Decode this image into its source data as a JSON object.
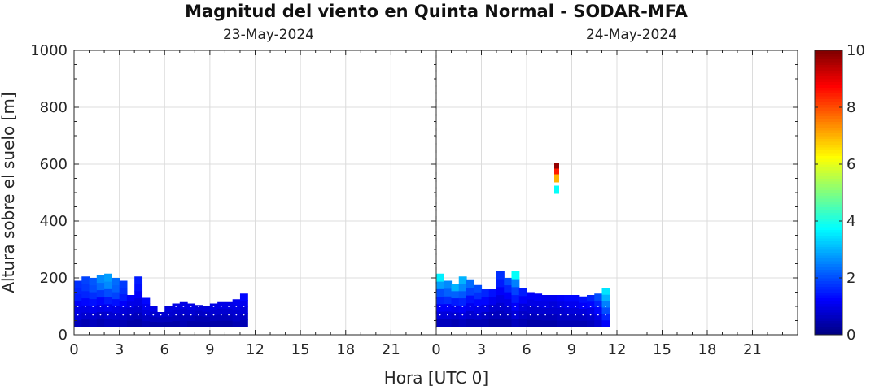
{
  "chart_data": {
    "type": "heatmap",
    "title": "Magnitud del viento en Quinta Normal - SODAR-MFA",
    "xlabel": "Hora [UTC 0]",
    "ylabel": "Altura sobre el suelo [m]",
    "ylim": [
      0,
      1000
    ],
    "yticks": [
      "0",
      "200",
      "400",
      "600",
      "800",
      "1000"
    ],
    "grid": true,
    "days": [
      {
        "date": "23-May-2024",
        "xlim": [
          0,
          24
        ],
        "xticks": [
          "0",
          "3",
          "6",
          "9",
          "12",
          "15",
          "18",
          "21"
        ],
        "columns": [
          {
            "x": 0.0,
            "top": 190,
            "values": [
              0.6,
              0.9,
              1.0,
              1.2,
              1.5,
              1.6,
              1.7
            ]
          },
          {
            "x": 0.5,
            "top": 205,
            "values": [
              0.5,
              0.8,
              1.0,
              1.3,
              1.6,
              1.8,
              1.9
            ]
          },
          {
            "x": 1.0,
            "top": 200,
            "values": [
              0.6,
              0.8,
              1.1,
              1.4,
              1.7,
              2.0,
              2.1
            ]
          },
          {
            "x": 1.5,
            "top": 210,
            "values": [
              0.5,
              0.7,
              1.0,
              1.3,
              1.8,
              2.3,
              2.6
            ]
          },
          {
            "x": 2.0,
            "top": 215,
            "values": [
              0.6,
              0.8,
              1.1,
              1.5,
              2.0,
              2.6,
              2.8
            ]
          },
          {
            "x": 2.5,
            "top": 200,
            "values": [
              0.6,
              0.8,
              1.0,
              1.4,
              1.9,
              2.2,
              2.3
            ]
          },
          {
            "x": 3.0,
            "top": 190,
            "values": [
              0.5,
              0.7,
              0.9,
              1.2,
              1.5,
              1.7,
              1.8
            ]
          },
          {
            "x": 3.5,
            "top": 140,
            "values": [
              0.4,
              0.6,
              0.8,
              1.0,
              1.2
            ]
          },
          {
            "x": 4.0,
            "top": 205,
            "values": [
              0.4,
              0.6,
              0.8,
              1.0,
              1.2,
              1.4,
              1.5
            ]
          },
          {
            "x": 4.5,
            "top": 130,
            "values": [
              0.5,
              0.7,
              0.9,
              1.1,
              1.3
            ]
          },
          {
            "x": 5.0,
            "top": 100,
            "values": [
              0.4,
              0.6,
              0.8,
              1.0
            ]
          },
          {
            "x": 5.5,
            "top": 80,
            "values": [
              0.4,
              0.6,
              0.8
            ]
          },
          {
            "x": 6.0,
            "top": 100,
            "values": [
              0.4,
              0.6,
              0.8,
              0.9
            ]
          },
          {
            "x": 6.5,
            "top": 110,
            "values": [
              0.4,
              0.6,
              0.8,
              1.0
            ]
          },
          {
            "x": 7.0,
            "top": 115,
            "values": [
              0.5,
              0.6,
              0.8,
              1.0
            ]
          },
          {
            "x": 7.5,
            "top": 110,
            "values": [
              0.4,
              0.6,
              0.8,
              1.0
            ]
          },
          {
            "x": 8.0,
            "top": 105,
            "values": [
              0.4,
              0.5,
              0.7,
              0.9
            ]
          },
          {
            "x": 8.5,
            "top": 100,
            "values": [
              0.4,
              0.5,
              0.7,
              0.9
            ]
          },
          {
            "x": 9.0,
            "top": 110,
            "values": [
              0.4,
              0.6,
              0.8,
              1.0
            ]
          },
          {
            "x": 9.5,
            "top": 115,
            "values": [
              0.4,
              0.6,
              0.8,
              1.0
            ]
          },
          {
            "x": 10.0,
            "top": 115,
            "values": [
              0.4,
              0.6,
              0.8,
              1.0
            ]
          },
          {
            "x": 10.5,
            "top": 125,
            "values": [
              0.5,
              0.7,
              0.8,
              1.0,
              1.1
            ]
          },
          {
            "x": 11.0,
            "top": 145,
            "values": [
              0.5,
              0.7,
              0.9,
              1.1,
              1.3
            ]
          }
        ]
      },
      {
        "date": "24-May-2024",
        "xlim": [
          0,
          24
        ],
        "xticks": [
          "0",
          "3",
          "6",
          "9",
          "12",
          "15",
          "18",
          "21"
        ],
        "columns": [
          {
            "x": 0.0,
            "top": 215,
            "values": [
              0.6,
              0.9,
              1.2,
              1.6,
              2.0,
              2.8,
              3.6
            ]
          },
          {
            "x": 0.5,
            "top": 190,
            "values": [
              0.6,
              0.9,
              1.2,
              1.7,
              2.2,
              2.6
            ]
          },
          {
            "x": 1.0,
            "top": 180,
            "values": [
              0.5,
              0.8,
              1.1,
              1.5,
              2.2,
              3.0
            ]
          },
          {
            "x": 1.5,
            "top": 205,
            "values": [
              0.6,
              0.9,
              1.2,
              1.6,
              2.1,
              2.6,
              3.0
            ]
          },
          {
            "x": 2.0,
            "top": 195,
            "values": [
              0.5,
              0.8,
              1.1,
              1.4,
              1.9,
              2.3
            ]
          },
          {
            "x": 2.5,
            "top": 175,
            "values": [
              0.5,
              0.8,
              1.0,
              1.3,
              1.7,
              2.0
            ]
          },
          {
            "x": 3.0,
            "top": 160,
            "values": [
              0.5,
              0.7,
              1.0,
              1.3,
              1.6
            ]
          },
          {
            "x": 3.5,
            "top": 160,
            "values": [
              0.4,
              0.6,
              0.8,
              1.1,
              1.4
            ]
          },
          {
            "x": 4.0,
            "top": 225,
            "values": [
              0.4,
              0.6,
              0.8,
              1.0,
              1.2,
              1.5,
              1.7
            ]
          },
          {
            "x": 4.5,
            "top": 200,
            "values": [
              0.4,
              0.6,
              0.8,
              1.0,
              1.2,
              1.6,
              2.0
            ]
          },
          {
            "x": 5.0,
            "top": 225,
            "values": [
              0.6,
              0.9,
              1.2,
              1.5,
              1.9,
              2.5,
              3.8
            ]
          },
          {
            "x": 5.5,
            "top": 165,
            "values": [
              0.5,
              0.7,
              0.9,
              1.2,
              1.5
            ]
          },
          {
            "x": 6.0,
            "top": 150,
            "values": [
              0.4,
              0.6,
              0.8,
              1.0,
              1.2
            ]
          },
          {
            "x": 6.5,
            "top": 145,
            "values": [
              0.4,
              0.6,
              0.8,
              1.0,
              1.2
            ]
          },
          {
            "x": 7.0,
            "top": 140,
            "values": [
              0.4,
              0.6,
              0.8,
              1.0,
              1.1
            ]
          },
          {
            "x": 7.5,
            "top": 140,
            "values": [
              0.4,
              0.6,
              0.8,
              0.9,
              1.1
            ]
          },
          {
            "x": 8.0,
            "top": 140,
            "values": [
              0.5,
              0.7,
              0.8,
              1.0,
              1.2
            ]
          },
          {
            "x": 8.5,
            "top": 140,
            "values": [
              0.5,
              0.7,
              0.9,
              1.1,
              1.3
            ]
          },
          {
            "x": 9.0,
            "top": 140,
            "values": [
              0.5,
              0.7,
              0.9,
              1.1,
              1.3
            ]
          },
          {
            "x": 9.5,
            "top": 135,
            "values": [
              0.5,
              0.7,
              0.9,
              1.2,
              1.4
            ]
          },
          {
            "x": 10.0,
            "top": 140,
            "values": [
              0.6,
              0.8,
              1.0,
              1.3,
              1.6
            ]
          },
          {
            "x": 10.5,
            "top": 145,
            "values": [
              0.8,
              1.0,
              1.3,
              1.6,
              2.0
            ]
          },
          {
            "x": 11.0,
            "top": 165,
            "values": [
              1.2,
              1.6,
              2.0,
              2.5,
              3.0,
              3.5
            ]
          }
        ],
        "isolated_points": [
          {
            "x": 8.0,
            "y": 590,
            "value": 9.8
          },
          {
            "x": 8.0,
            "y": 570,
            "value": 8.5
          },
          {
            "x": 8.0,
            "y": 550,
            "value": 7.0
          },
          {
            "x": 8.0,
            "y": 510,
            "value": 3.8
          }
        ]
      }
    ],
    "colorbar": {
      "range": [
        0,
        10
      ],
      "ticks": [
        "0",
        "2",
        "4",
        "6",
        "8",
        "10"
      ],
      "colormap": "jet"
    }
  }
}
